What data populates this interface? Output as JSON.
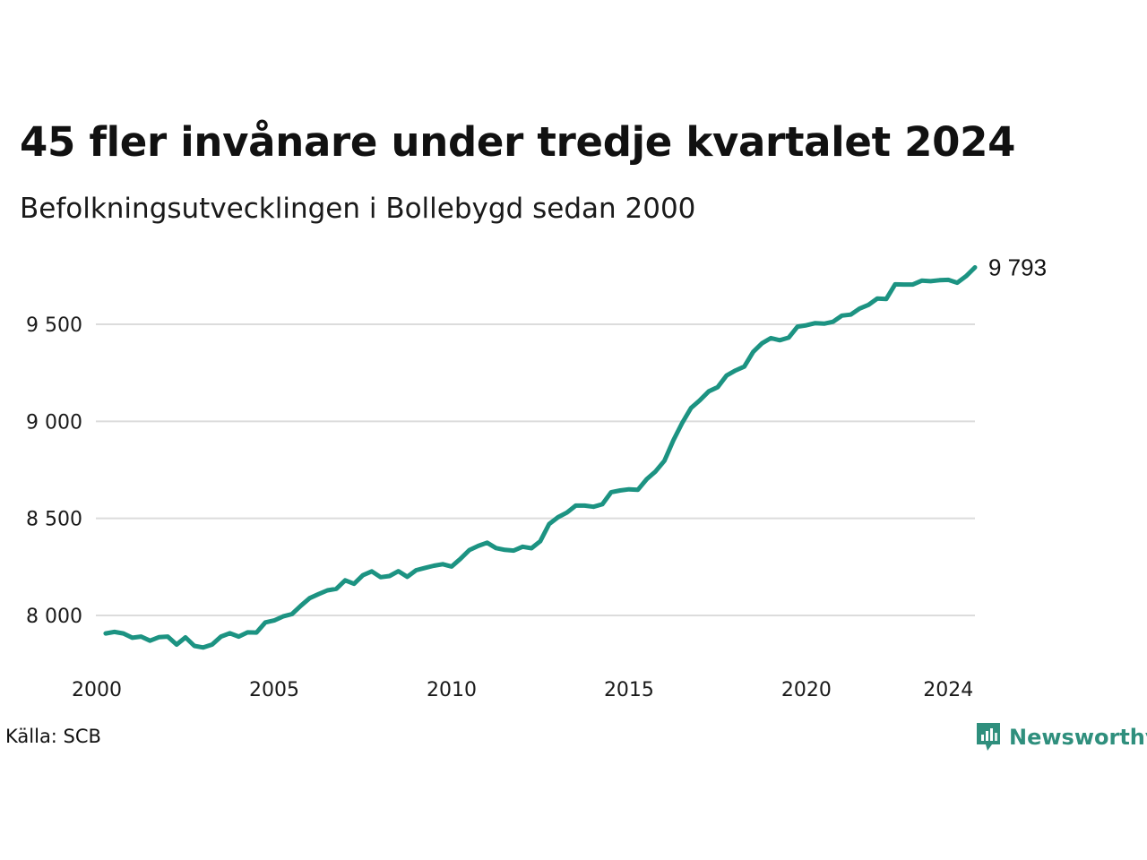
{
  "title": "45 fler invånare under tredje kvartalet 2024",
  "subtitle": "Befolkningsutvecklingen i Bollebygd sedan 2000",
  "source": "Källa: SCB",
  "brand": "Newsworthy",
  "colors": {
    "line": "#1c9382",
    "grid": "#dcdcdc",
    "brand": "#2f8f7d"
  },
  "chart_data": {
    "type": "line",
    "title": "45 fler invånare under tredje kvartalet 2024",
    "subtitle": "Befolkningsutvecklingen i Bollebygd sedan 2000",
    "xlabel": "",
    "ylabel": "",
    "ylim": [
      7800,
      9850
    ],
    "xlim": [
      2000.0,
      2024.75
    ],
    "grid": "horizontal",
    "legend": "none",
    "x_ticks": [
      {
        "value": 2000,
        "label": "2000"
      },
      {
        "value": 2005,
        "label": "2005"
      },
      {
        "value": 2010,
        "label": "2010"
      },
      {
        "value": 2015,
        "label": "2015"
      },
      {
        "value": 2020,
        "label": "2020"
      },
      {
        "value": 2024,
        "label": "2024"
      }
    ],
    "y_ticks": [
      {
        "value": 8000,
        "label": "8 000"
      },
      {
        "value": 8500,
        "label": "8 500"
      },
      {
        "value": 9000,
        "label": "9 000"
      },
      {
        "value": 9500,
        "label": "9 500"
      }
    ],
    "end_label": "9 793",
    "series": [
      {
        "x": [
          2000.25,
          2000.5,
          2000.75,
          2001.0,
          2001.25,
          2001.5,
          2001.75,
          2002.0,
          2002.25,
          2002.5,
          2002.75,
          2003.0,
          2003.25,
          2003.5,
          2003.75,
          2004.0,
          2004.25,
          2004.5,
          2004.75,
          2005.0,
          2005.25,
          2005.5,
          2005.75,
          2006.0,
          2006.25,
          2006.5,
          2006.75,
          2007.0,
          2007.25,
          2007.5,
          2007.75,
          2008.0,
          2008.25,
          2008.5,
          2008.75,
          2009.0,
          2009.25,
          2009.5,
          2009.75,
          2010.0,
          2010.25,
          2010.5,
          2010.75,
          2011.0,
          2011.25,
          2011.5,
          2011.75,
          2012.0,
          2012.25,
          2012.5,
          2012.75,
          2013.0,
          2013.25,
          2013.5,
          2013.75,
          2014.0,
          2014.25,
          2014.5,
          2014.75,
          2015.0,
          2015.25,
          2015.5,
          2015.75,
          2016.0,
          2016.25,
          2016.5,
          2016.75,
          2017.0,
          2017.25,
          2017.5,
          2017.75,
          2018.0,
          2018.25,
          2018.5,
          2018.75,
          2019.0,
          2019.25,
          2019.5,
          2019.75,
          2020.0,
          2020.25,
          2020.5,
          2020.75,
          2021.0,
          2021.25,
          2021.5,
          2021.75,
          2022.0,
          2022.25,
          2022.5,
          2022.75,
          2023.0,
          2023.25,
          2023.5,
          2023.75,
          2024.0,
          2024.25,
          2024.5,
          2024.75
        ],
        "values": [
          7907,
          7915,
          7907,
          7885,
          7891,
          7870,
          7888,
          7891,
          7850,
          7887,
          7843,
          7835,
          7850,
          7891,
          7908,
          7891,
          7913,
          7912,
          7964,
          7974,
          7995,
          8007,
          8050,
          8089,
          8110,
          8129,
          8137,
          8181,
          8163,
          8207,
          8227,
          8197,
          8203,
          8228,
          8199,
          8233,
          8245,
          8256,
          8264,
          8252,
          8292,
          8337,
          8358,
          8375,
          8347,
          8338,
          8334,
          8354,
          8346,
          8382,
          8471,
          8506,
          8530,
          8566,
          8566,
          8560,
          8573,
          8635,
          8644,
          8650,
          8647,
          8702,
          8742,
          8797,
          8902,
          8992,
          9069,
          9109,
          9155,
          9176,
          9236,
          9262,
          9282,
          9358,
          9402,
          9429,
          9418,
          9431,
          9488,
          9495,
          9506,
          9503,
          9513,
          9545,
          9550,
          9581,
          9600,
          9633,
          9630,
          9706,
          9705,
          9705,
          9725,
          9722,
          9727,
          9729,
          9714,
          9748,
          9793
        ]
      }
    ]
  }
}
